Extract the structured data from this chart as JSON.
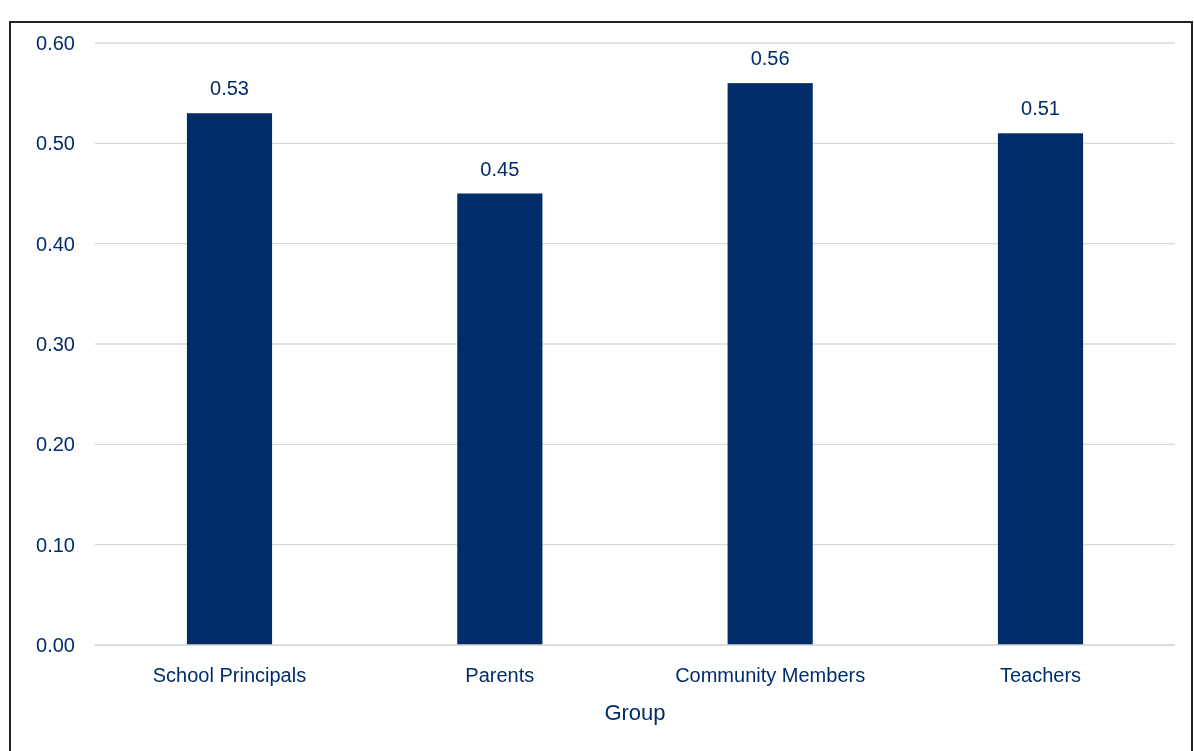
{
  "chart_data": {
    "type": "bar",
    "xlabel": "Group",
    "categories": [
      "School Principals",
      "Parents",
      "Community Members",
      "Teachers"
    ],
    "values": [
      0.53,
      0.45,
      0.56,
      0.51
    ],
    "color": "#002d6a",
    "ylim": [
      0,
      0.6
    ],
    "yticks": [
      {
        "value": 0,
        "label": "0.00"
      },
      {
        "value": 0.1,
        "label": "0.10"
      },
      {
        "value": 0.2,
        "label": "0.20"
      },
      {
        "value": 0.3,
        "label": "0.30"
      },
      {
        "value": 0.4,
        "label": "0.40"
      },
      {
        "value": 0.5,
        "label": "0.50"
      },
      {
        "value": 0.6,
        "label": "0.60"
      }
    ],
    "grid": "y",
    "data_labels": true
  }
}
